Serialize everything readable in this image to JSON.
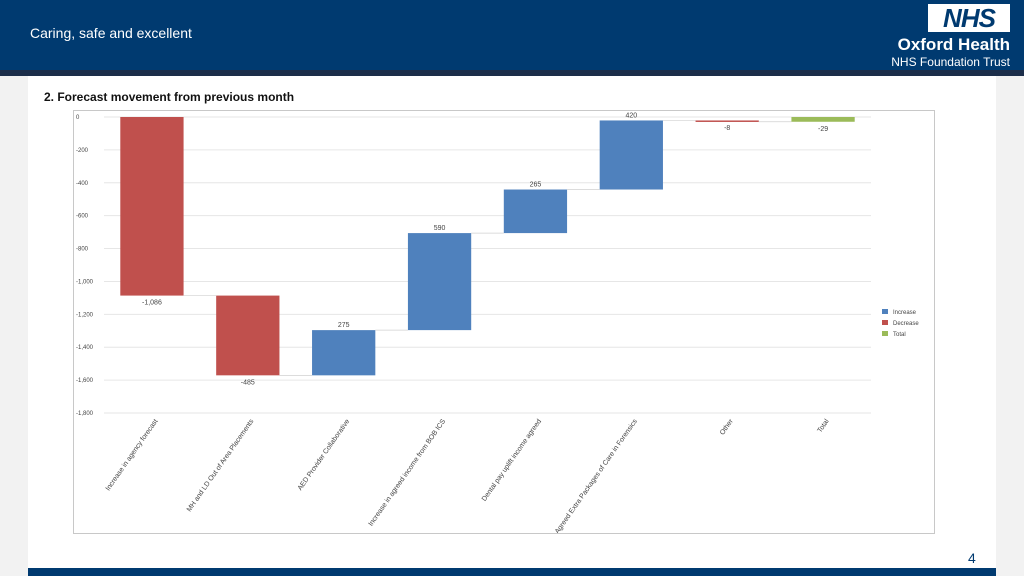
{
  "header": {
    "tagline": "Caring, safe and excellent",
    "logo_text": "NHS",
    "org_name": "Oxford Health",
    "org_subtitle": "NHS Foundation Trust"
  },
  "slide": {
    "title": "2. Forecast movement from previous month",
    "page_number": "4"
  },
  "colors": {
    "header_bg": "#003a70",
    "increase": "#4f81bd",
    "decrease": "#c0504d",
    "total": "#9bbb59"
  },
  "chart_data": {
    "type": "bar",
    "subtype": "waterfall",
    "title": "",
    "xlabel": "",
    "ylabel": "",
    "ylim": [
      -1800,
      0
    ],
    "yticks": [
      0,
      -200,
      -400,
      -600,
      -800,
      -1000,
      -1200,
      -1400,
      -1600,
      -1800
    ],
    "ytick_labels": [
      "0",
      "-200",
      "-400",
      "-600",
      "-800",
      "-1,000",
      "-1,200",
      "-1,400",
      "-1,600",
      "-1,800"
    ],
    "grid": true,
    "legend_position": "right",
    "legend": [
      {
        "label": "Increase",
        "color": "#4f81bd"
      },
      {
        "label": "Decrease",
        "color": "#c0504d"
      },
      {
        "label": "Total",
        "color": "#9bbb59"
      }
    ],
    "categories": [
      "Increase in agency forecast",
      "MH and LD Out of Area Placements",
      "AED Provider Collaborative",
      "Increase in agreed income from BOB ICS",
      "Dental pay uplift income agreed",
      "Agreed Extra Packages of Care in Forensics",
      "Other",
      "Total"
    ],
    "values": [
      -1086,
      -485,
      275,
      590,
      265,
      420,
      -8,
      -29
    ],
    "value_labels": [
      "-1,086",
      "-485",
      "275",
      "590",
      "265",
      "420",
      "-8",
      "-29"
    ],
    "kinds": [
      "Decrease",
      "Decrease",
      "Increase",
      "Increase",
      "Increase",
      "Increase",
      "Decrease",
      "Total"
    ]
  }
}
